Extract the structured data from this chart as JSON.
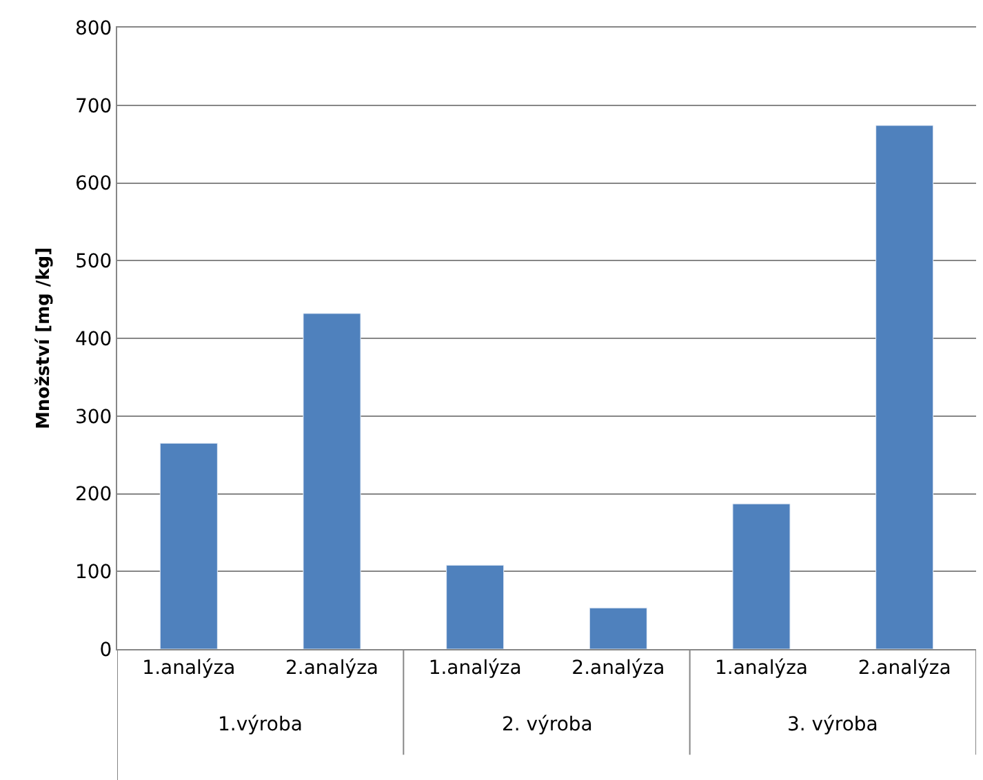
{
  "chart_data": {
    "type": "bar",
    "ylabel": "Množství [mg /kg]",
    "categories": [
      "1.analýza",
      "2.analýza",
      "1.analýza",
      "2.analýza",
      "1.analýza",
      "2.analýza"
    ],
    "values": [
      265,
      432,
      108,
      53,
      187,
      674
    ],
    "color": "#4f81bd",
    "annotations": [
      "1.výroba",
      "2. výroba",
      "3. výroba"
    ],
    "ylim": [
      0,
      800
    ],
    "yticks": [
      0,
      100,
      200,
      300,
      400,
      500,
      600,
      700,
      800
    ],
    "grid": "y"
  }
}
